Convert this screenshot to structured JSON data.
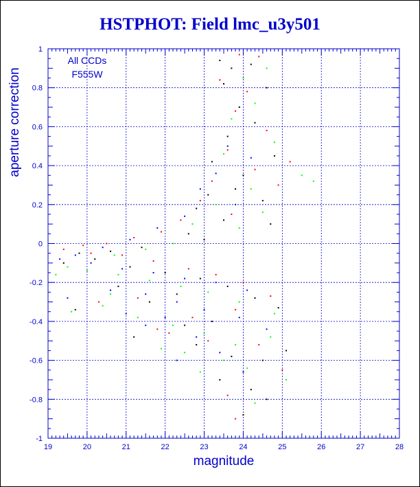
{
  "chart_data": {
    "type": "scatter",
    "title": "HSTPHOT: Field lmc_u3y501",
    "xlabel": "magnitude",
    "ylabel": "aperture correction",
    "xlim": [
      19,
      28
    ],
    "ylim": [
      -1,
      1
    ],
    "xticks": [
      "19",
      "20",
      "21",
      "22",
      "23",
      "24",
      "25",
      "26",
      "27",
      "28"
    ],
    "yticks": [
      "-1",
      "-0.8",
      "-0.6",
      "-0.4",
      "-0.2",
      "0",
      "0.2",
      "0.4",
      "0.6",
      "0.8",
      "1"
    ],
    "grid": true,
    "annotations": [
      "All CCDs",
      "F555W"
    ],
    "series": [
      {
        "color": "#000000",
        "points": [
          [
            23.4,
            0.94
          ],
          [
            23.7,
            0.9
          ],
          [
            24.2,
            0.92
          ],
          [
            23.5,
            0.82
          ],
          [
            24.6,
            0.8
          ],
          [
            23.9,
            0.7
          ],
          [
            24.3,
            0.62
          ],
          [
            23.6,
            0.55
          ],
          [
            24.8,
            0.45
          ],
          [
            23.2,
            0.42
          ],
          [
            24.0,
            0.35
          ],
          [
            23.8,
            0.28
          ],
          [
            23.1,
            0.25
          ],
          [
            24.5,
            0.22
          ],
          [
            22.8,
            0.18
          ],
          [
            23.5,
            0.12
          ],
          [
            24.7,
            0.1
          ],
          [
            22.6,
            0.05
          ],
          [
            23.0,
            0.02
          ],
          [
            22.2,
            0.0
          ],
          [
            21.4,
            -0.02
          ],
          [
            20.6,
            -0.04
          ],
          [
            19.8,
            -0.05
          ],
          [
            19.4,
            -0.1
          ],
          [
            20.2,
            -0.08
          ],
          [
            21.1,
            -0.12
          ],
          [
            22.0,
            -0.15
          ],
          [
            22.9,
            -0.18
          ],
          [
            23.6,
            -0.22
          ],
          [
            24.3,
            -0.28
          ],
          [
            24.9,
            -0.33
          ],
          [
            23.2,
            -0.4
          ],
          [
            22.5,
            -0.42
          ],
          [
            21.2,
            -0.48
          ],
          [
            22.8,
            -0.52
          ],
          [
            23.7,
            -0.58
          ],
          [
            24.5,
            -0.6
          ],
          [
            25.1,
            -0.55
          ],
          [
            24.2,
            -0.75
          ],
          [
            23.4,
            -0.7
          ],
          [
            24.6,
            -0.8
          ],
          [
            24.0,
            -0.88
          ],
          [
            21.6,
            -0.3
          ],
          [
            20.8,
            -0.22
          ],
          [
            22.3,
            -0.26
          ],
          [
            19.7,
            -0.34
          ]
        ]
      },
      {
        "color": "#ff0000",
        "points": [
          [
            23.9,
            0.97
          ],
          [
            24.4,
            0.96
          ],
          [
            23.4,
            0.84
          ],
          [
            24.1,
            0.78
          ],
          [
            23.8,
            0.68
          ],
          [
            24.6,
            0.58
          ],
          [
            23.6,
            0.48
          ],
          [
            25.2,
            0.42
          ],
          [
            24.3,
            0.38
          ],
          [
            23.2,
            0.32
          ],
          [
            24.9,
            0.3
          ],
          [
            22.9,
            0.22
          ],
          [
            23.7,
            0.15
          ],
          [
            22.4,
            0.12
          ],
          [
            21.9,
            0.06
          ],
          [
            21.2,
            0.03
          ],
          [
            20.5,
            0.0
          ],
          [
            19.9,
            -0.01
          ],
          [
            19.4,
            -0.03
          ],
          [
            20.1,
            -0.05
          ],
          [
            20.9,
            -0.06
          ],
          [
            21.7,
            -0.09
          ],
          [
            22.6,
            -0.13
          ],
          [
            23.3,
            -0.16
          ],
          [
            24.0,
            -0.2
          ],
          [
            24.7,
            -0.27
          ],
          [
            23.8,
            -0.34
          ],
          [
            22.7,
            -0.38
          ],
          [
            21.8,
            -0.44
          ],
          [
            23.1,
            -0.5
          ],
          [
            24.4,
            -0.52
          ],
          [
            25.0,
            -0.65
          ],
          [
            23.6,
            -0.78
          ],
          [
            23.8,
            -0.9
          ],
          [
            22.1,
            -0.46
          ],
          [
            20.3,
            -0.3
          ],
          [
            21.3,
            -0.28
          ]
        ]
      },
      {
        "color": "#00ff00",
        "points": [
          [
            24.6,
            0.9
          ],
          [
            24.0,
            0.85
          ],
          [
            24.3,
            0.72
          ],
          [
            23.7,
            0.64
          ],
          [
            24.8,
            0.52
          ],
          [
            23.5,
            0.46
          ],
          [
            25.5,
            0.35
          ],
          [
            25.8,
            0.32
          ],
          [
            24.2,
            0.28
          ],
          [
            23.3,
            0.2
          ],
          [
            24.5,
            0.16
          ],
          [
            22.7,
            0.1
          ],
          [
            23.9,
            0.08
          ],
          [
            22.2,
            0.0
          ],
          [
            21.5,
            -0.03
          ],
          [
            20.7,
            -0.06
          ],
          [
            19.5,
            -0.12
          ],
          [
            19.2,
            -0.16
          ],
          [
            20.0,
            -0.14
          ],
          [
            20.8,
            -0.16
          ],
          [
            21.6,
            -0.19
          ],
          [
            22.4,
            -0.22
          ],
          [
            23.1,
            -0.25
          ],
          [
            23.9,
            -0.3
          ],
          [
            24.8,
            -0.36
          ],
          [
            19.6,
            -0.35
          ],
          [
            20.4,
            -0.32
          ],
          [
            21.3,
            -0.38
          ],
          [
            22.2,
            -0.42
          ],
          [
            23.0,
            -0.46
          ],
          [
            23.8,
            -0.52
          ],
          [
            24.7,
            -0.48
          ],
          [
            22.5,
            -0.56
          ],
          [
            23.5,
            -0.6
          ],
          [
            24.1,
            -0.64
          ],
          [
            25.1,
            -0.7
          ],
          [
            24.3,
            -0.82
          ],
          [
            21.9,
            -0.54
          ],
          [
            22.9,
            -0.66
          ],
          [
            20.6,
            -0.26
          ]
        ]
      },
      {
        "color": "#0000ff",
        "points": [
          [
            23.6,
            0.5
          ],
          [
            24.2,
            0.44
          ],
          [
            23.3,
            0.36
          ],
          [
            22.9,
            0.28
          ],
          [
            23.8,
            0.2
          ],
          [
            22.5,
            0.14
          ],
          [
            21.8,
            0.08
          ],
          [
            21.1,
            0.02
          ],
          [
            20.4,
            -0.02
          ],
          [
            19.7,
            -0.06
          ],
          [
            19.3,
            -0.08
          ],
          [
            20.1,
            -0.1
          ],
          [
            20.9,
            -0.13
          ],
          [
            21.7,
            -0.15
          ],
          [
            22.5,
            -0.18
          ],
          [
            23.3,
            -0.2
          ],
          [
            24.1,
            -0.24
          ],
          [
            19.5,
            -0.28
          ],
          [
            20.6,
            -0.24
          ],
          [
            21.5,
            -0.26
          ],
          [
            22.3,
            -0.3
          ],
          [
            23.0,
            -0.34
          ],
          [
            23.9,
            -0.38
          ],
          [
            24.6,
            -0.44
          ],
          [
            22.0,
            -0.38
          ],
          [
            21.0,
            -0.36
          ],
          [
            22.8,
            -0.48
          ],
          [
            23.4,
            -0.56
          ],
          [
            24.0,
            -0.66
          ],
          [
            22.3,
            -0.6
          ],
          [
            21.5,
            -0.42
          ]
        ]
      }
    ]
  }
}
